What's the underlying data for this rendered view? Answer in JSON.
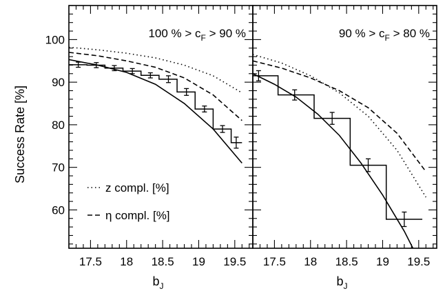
{
  "chart_data": {
    "type": "line",
    "ylabel": "Success Rate [%]",
    "ylim": [
      51,
      108
    ],
    "yticks": [
      60,
      70,
      80,
      90,
      100
    ],
    "legend": {
      "placement": "bottom-left of left panel",
      "entries": [
        {
          "style": "dotted",
          "label": "z compl. [%]"
        },
        {
          "style": "dashed",
          "label": "η compl. [%]"
        }
      ]
    },
    "panels": [
      {
        "annotation": "100 % > c_F > 90 %",
        "annotation_main": "100 % > c",
        "annotation_sub": "F",
        "annotation_tail": " > 90 %",
        "xlabel_main": "b",
        "xlabel_sub": "J",
        "xlim": [
          17.2,
          19.75
        ],
        "xticks": [
          17.5,
          18,
          18.5,
          19,
          19.5
        ],
        "tick_labels": [
          "17.5",
          "18",
          "18.5",
          "19",
          "19.5"
        ],
        "histogram": {
          "edges": [
            17.2,
            17.45,
            17.7,
            17.95,
            18.2,
            18.45,
            18.7,
            18.95,
            19.2,
            19.45,
            19.6
          ],
          "values": [
            94.1,
            94.0,
            93.3,
            92.6,
            91.6,
            90.7,
            87.7,
            83.7,
            79.0,
            75.8
          ]
        },
        "points": {
          "x": [
            17.33,
            17.58,
            17.83,
            18.08,
            18.33,
            18.58,
            18.83,
            19.08,
            19.33,
            19.52
          ],
          "y": [
            94.1,
            94.0,
            93.3,
            92.6,
            91.6,
            90.7,
            87.7,
            83.7,
            79.0,
            75.8
          ],
          "err": [
            0.6,
            0.6,
            0.6,
            0.6,
            0.6,
            0.8,
            0.8,
            0.7,
            0.8,
            1.3
          ]
        },
        "series": [
          {
            "style": "solid",
            "x": [
              17.2,
              17.6,
              18.0,
              18.4,
              18.8,
              19.2,
              19.6
            ],
            "y": [
              95.3,
              94.0,
              92.3,
              89.5,
              85.0,
              79.0,
              71.0
            ]
          },
          {
            "style": "dashed",
            "x": [
              17.2,
              17.6,
              18.0,
              18.4,
              18.8,
              19.2,
              19.6
            ],
            "y": [
              97.0,
              96.2,
              95.0,
              93.5,
              91.0,
              87.0,
              81.0
            ]
          },
          {
            "style": "dotted",
            "x": [
              17.2,
              17.6,
              18.0,
              18.4,
              18.8,
              19.2,
              19.6
            ],
            "y": [
              98.2,
              97.6,
              96.8,
              95.7,
              94.0,
              91.5,
              87.5
            ]
          }
        ]
      },
      {
        "annotation": "90 % > c_F > 80 %",
        "annotation_main": "90 % > c",
        "annotation_sub": "F",
        "annotation_tail": " > 80 %",
        "xlabel_main": "b",
        "xlabel_sub": "J",
        "xlim": [
          17.2,
          19.75
        ],
        "xticks": [
          17.5,
          18,
          18.5,
          19,
          19.5
        ],
        "tick_labels": [
          "17.5",
          "18",
          "18.5",
          "19",
          "19.5"
        ],
        "histogram": {
          "edges": [
            17.2,
            17.55,
            18.05,
            18.55,
            19.05,
            19.55
          ],
          "values": [
            91.5,
            87.0,
            81.5,
            70.5,
            57.8
          ]
        },
        "points": {
          "x": [
            17.28,
            17.78,
            18.3,
            18.8,
            19.3
          ],
          "y": [
            91.5,
            87.0,
            81.5,
            70.5,
            57.8
          ],
          "err": [
            1.2,
            1.2,
            1.4,
            1.5,
            1.7
          ]
        },
        "series": [
          {
            "style": "solid",
            "x": [
              17.2,
              17.5,
              17.8,
              18.1,
              18.4,
              18.7,
              19.0,
              19.3,
              19.6
            ],
            "y": [
              92.0,
              89.5,
              86.5,
              82.5,
              77.5,
              71.0,
              63.5,
              55.0,
              45.0
            ]
          },
          {
            "style": "dashed",
            "x": [
              17.2,
              17.6,
              18.0,
              18.4,
              18.8,
              19.2,
              19.6
            ],
            "y": [
              95.0,
              93.3,
              91.0,
              88.0,
              84.0,
              78.0,
              69.0
            ]
          },
          {
            "style": "dotted",
            "x": [
              17.2,
              17.6,
              18.0,
              18.4,
              18.8,
              19.2,
              19.6
            ],
            "y": [
              96.5,
              94.5,
              91.5,
              87.5,
              82.0,
              74.0,
              63.0
            ]
          }
        ]
      }
    ]
  }
}
